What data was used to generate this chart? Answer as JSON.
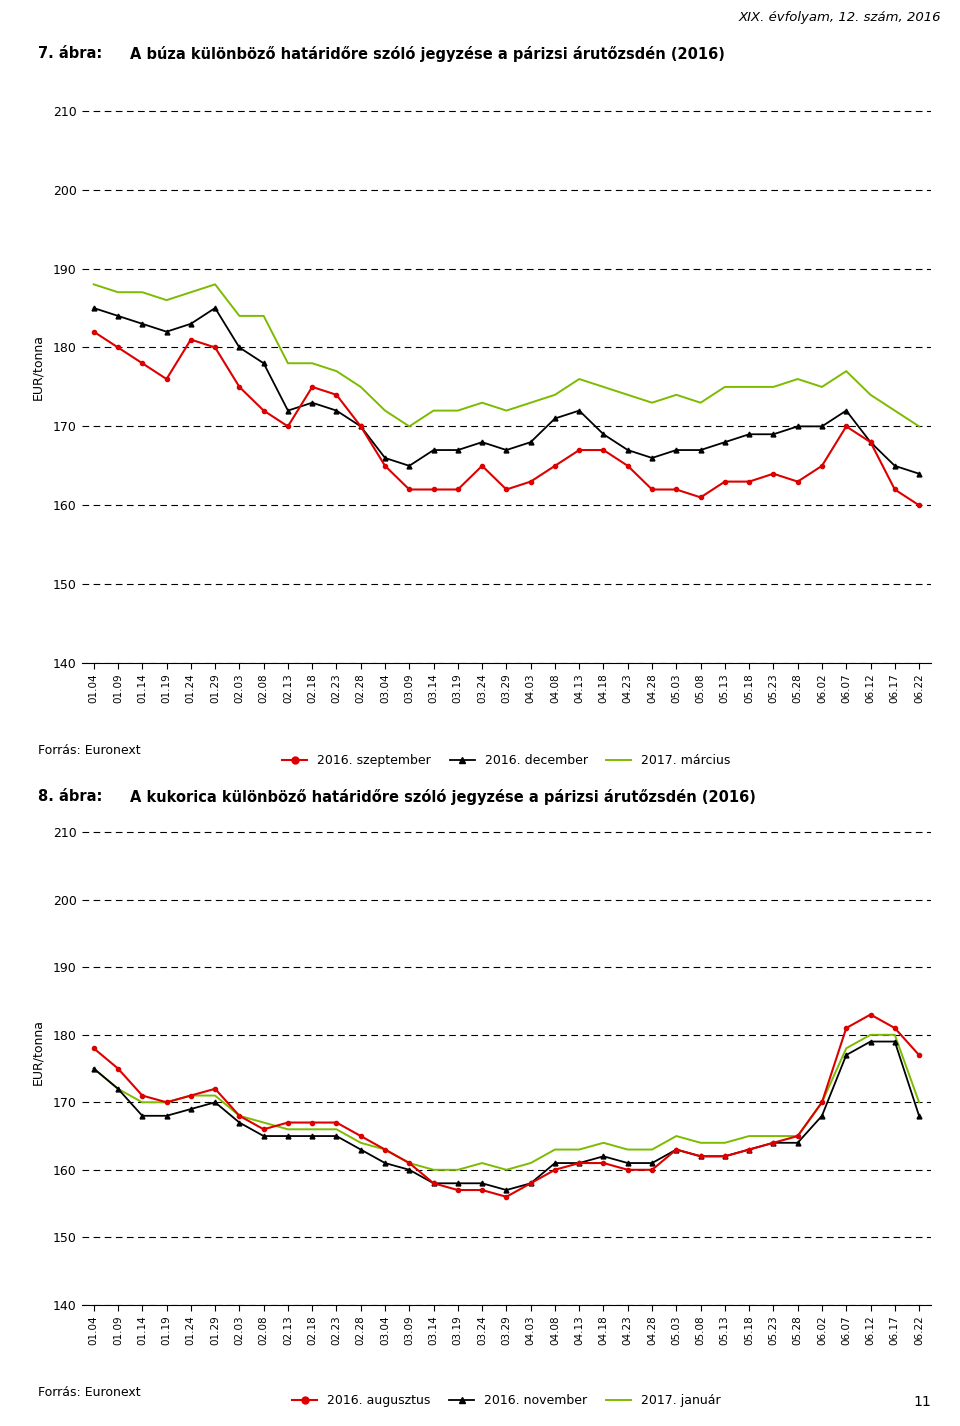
{
  "page_header": "XIX. évfolyam, 12. szám, 2016",
  "chart1_title_prefix": "7. ábra:",
  "chart1_title": "A búza különböző határidőre szóló jegyzése a párizsi árutőzsdén (2016)",
  "chart2_title_prefix": "8. ábra:",
  "chart2_title": "A kukorica különböző határidőre szóló jegyzése a párizsi árutőzsdén (2016)",
  "ylabel": "EUR/tonna",
  "source": "Forrás: Euronext",
  "page_number": "11",
  "ylim": [
    140,
    215
  ],
  "yticks": [
    140,
    150,
    160,
    170,
    180,
    190,
    200,
    210
  ],
  "xtick_labels": [
    "01.04",
    "01.09",
    "01.14",
    "01.19",
    "01.24",
    "01.29",
    "02.03",
    "02.08",
    "02.13",
    "02.18",
    "02.23",
    "02.28",
    "03.04",
    "03.09",
    "03.14",
    "03.19",
    "03.24",
    "03.29",
    "04.03",
    "04.08",
    "04.13",
    "04.18",
    "04.23",
    "04.28",
    "05.03",
    "05.08",
    "05.13",
    "05.18",
    "05.23",
    "05.28",
    "06.02",
    "06.07",
    "06.12",
    "06.17",
    "06.22"
  ],
  "chart1_line1_label": "2016. szeptember",
  "chart1_line2_label": "2016. december",
  "chart1_line3_label": "2017. március",
  "chart2_line1_label": "2016. augusztus",
  "chart2_line2_label": "2016. november",
  "chart2_line3_label": "2017. január",
  "line1_color": "#dd0000",
  "line2_color": "#000000",
  "line3_color": "#7cbb00",
  "wheat_sep": [
    182,
    180,
    178,
    176,
    181,
    180,
    175,
    172,
    170,
    175,
    174,
    170,
    165,
    162,
    162,
    162,
    165,
    162,
    163,
    165,
    167,
    167,
    165,
    162,
    162,
    161,
    163,
    163,
    164,
    163,
    165,
    170,
    168,
    162,
    160
  ],
  "wheat_dec": [
    185,
    184,
    183,
    182,
    183,
    185,
    180,
    178,
    172,
    173,
    172,
    170,
    166,
    165,
    167,
    167,
    168,
    167,
    168,
    171,
    172,
    169,
    167,
    166,
    167,
    167,
    168,
    169,
    169,
    170,
    170,
    172,
    168,
    165,
    164
  ],
  "wheat_mar": [
    188,
    187,
    187,
    186,
    187,
    188,
    184,
    184,
    178,
    178,
    177,
    175,
    172,
    170,
    172,
    172,
    173,
    172,
    173,
    174,
    176,
    175,
    174,
    173,
    174,
    173,
    175,
    175,
    175,
    176,
    175,
    177,
    174,
    172,
    170
  ],
  "corn_aug": [
    178,
    175,
    171,
    170,
    171,
    172,
    168,
    166,
    167,
    167,
    167,
    165,
    163,
    161,
    158,
    157,
    157,
    156,
    158,
    160,
    161,
    161,
    160,
    160,
    163,
    162,
    162,
    163,
    164,
    165,
    170,
    181,
    183,
    181,
    177
  ],
  "corn_nov": [
    175,
    172,
    168,
    168,
    169,
    170,
    167,
    165,
    165,
    165,
    165,
    163,
    161,
    160,
    158,
    158,
    158,
    157,
    158,
    161,
    161,
    162,
    161,
    161,
    163,
    162,
    162,
    163,
    164,
    164,
    168,
    177,
    179,
    179,
    168
  ],
  "corn_jan": [
    175,
    172,
    170,
    170,
    171,
    171,
    168,
    167,
    166,
    166,
    166,
    164,
    163,
    161,
    160,
    160,
    161,
    160,
    161,
    163,
    163,
    164,
    163,
    163,
    165,
    164,
    164,
    165,
    165,
    165,
    170,
    178,
    180,
    180,
    170
  ]
}
